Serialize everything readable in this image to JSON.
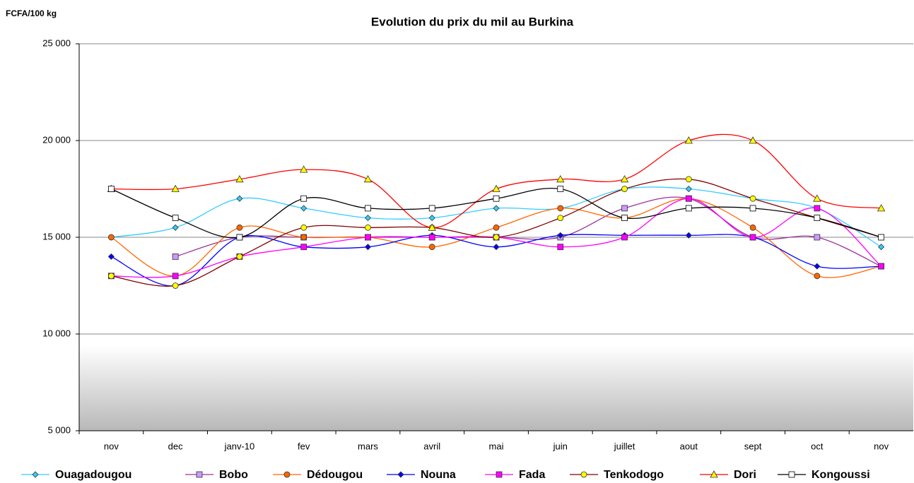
{
  "chart_data": {
    "type": "line",
    "title": "Evolution du prix du mil au Burkina",
    "y_label": "FCFA/100 kg",
    "categories": [
      "nov",
      "dec",
      "janv-10",
      "fev",
      "mars",
      "avril",
      "mai",
      "juin",
      "juillet",
      "aout",
      "sept",
      "oct",
      "nov"
    ],
    "ylim": [
      5000,
      25000
    ],
    "yticks": [
      {
        "value": 5000,
        "label": "5 000"
      },
      {
        "value": 10000,
        "label": "10 000"
      },
      {
        "value": 15000,
        "label": "15 000"
      },
      {
        "value": 20000,
        "label": "20 000"
      },
      {
        "value": 25000,
        "label": "25 000"
      }
    ],
    "grid": true,
    "smooth": true,
    "legend": "bottom",
    "series": [
      {
        "name": "Ouagadougou",
        "color": "#33ccff",
        "marker": "diamond",
        "marker_color": "#33ccff",
        "values": [
          15000,
          15500,
          17000,
          16500,
          16000,
          16000,
          16500,
          16500,
          17500,
          17500,
          17000,
          16500,
          14500
        ]
      },
      {
        "name": "Bobo",
        "color": "#993399",
        "marker": "square",
        "marker_color": "#cc99ff",
        "values": [
          null,
          14000,
          15000,
          15000,
          15000,
          15000,
          15000,
          15000,
          16500,
          17000,
          15000,
          15000,
          13500
        ]
      },
      {
        "name": "Dédougou",
        "color": "#ff6600",
        "marker": "circle",
        "marker_color": "#ff6600",
        "values": [
          15000,
          13000,
          15500,
          15000,
          15000,
          14500,
          15500,
          16500,
          16000,
          17000,
          15500,
          13000,
          13500
        ]
      },
      {
        "name": "Nouna",
        "color": "#0000ff",
        "marker": "diamond",
        "marker_color": "#0000ff",
        "values": [
          14000,
          12500,
          15000,
          14500,
          14500,
          15100,
          14500,
          15100,
          15100,
          15100,
          15000,
          13500,
          13500
        ]
      },
      {
        "name": "Fada",
        "color": "#ff00ff",
        "marker": "square",
        "marker_color": "#ff00ff",
        "values": [
          13000,
          13000,
          14000,
          14500,
          15000,
          15000,
          15000,
          14500,
          15000,
          17000,
          15000,
          16500,
          13500
        ]
      },
      {
        "name": "Tenkodogo",
        "color": "#800000",
        "marker": "circle",
        "marker_color": "#ffff00",
        "values": [
          13000,
          12500,
          14000,
          15500,
          15500,
          15500,
          15000,
          16000,
          17500,
          18000,
          17000,
          16000,
          15000
        ]
      },
      {
        "name": "Dori",
        "color": "#ff0000",
        "marker": "triangle",
        "marker_color": "#ffff00",
        "values": [
          17500,
          17500,
          18000,
          18500,
          18000,
          15500,
          17500,
          18000,
          18000,
          20000,
          20000,
          17000,
          16500
        ]
      },
      {
        "name": "Kongoussi",
        "color": "#000000",
        "marker": "square",
        "marker_color": "#ffffff",
        "values": [
          17500,
          16000,
          15000,
          17000,
          16500,
          16500,
          17000,
          17500,
          16000,
          16500,
          16500,
          16000,
          15000
        ]
      }
    ]
  }
}
